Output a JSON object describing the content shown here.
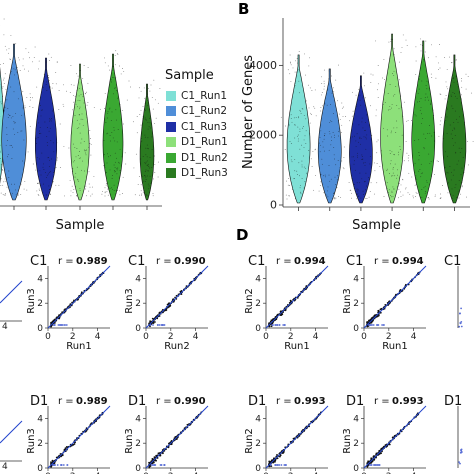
{
  "panels": {
    "b": "B",
    "d": "D"
  },
  "legend": {
    "title": "Sample",
    "items": [
      {
        "label": "C1_Run1",
        "color": "#7fe0d6"
      },
      {
        "label": "C1_Run2",
        "color": "#4f8ed8"
      },
      {
        "label": "C1_Run3",
        "color": "#1f2fa6"
      },
      {
        "label": "D1_Run1",
        "color": "#8de07a"
      },
      {
        "label": "D1_Run2",
        "color": "#3aa832"
      },
      {
        "label": "D1_Run3",
        "color": "#2a7a20"
      }
    ]
  },
  "chart_data": [
    {
      "type": "violin",
      "panel": "A",
      "xlabel": "Sample",
      "categories": [
        "C1_Run1",
        "C1_Run2",
        "C1_Run3",
        "D1_Run1",
        "D1_Run2",
        "D1_Run3"
      ],
      "colors": [
        "#7fe0d6",
        "#4f8ed8",
        "#1f2fa6",
        "#8de07a",
        "#3aa832",
        "#2a7a20"
      ]
    },
    {
      "type": "violin",
      "panel": "B",
      "title": "B",
      "xlabel": "Sample",
      "ylabel": "Number of Genes",
      "ylim": [
        0,
        5300
      ],
      "yticks": [
        0,
        2000,
        4000
      ],
      "ytick_labels": [
        "0",
        "2000",
        "4000"
      ],
      "categories": [
        "C1_Run1",
        "C1_Run2",
        "C1_Run3",
        "D1_Run1",
        "D1_Run2",
        "D1_Run3"
      ],
      "colors": [
        "#7fe0d6",
        "#4f8ed8",
        "#1f2fa6",
        "#8de07a",
        "#3aa832",
        "#2a7a20"
      ],
      "max_values": [
        4300,
        3900,
        3700,
        4900,
        4700,
        4300
      ]
    },
    {
      "type": "scatter",
      "panel": "C",
      "subplots": [
        {
          "label": "C1",
          "r": "0.989",
          "xlabel": "Run1",
          "ylabel": "Run3",
          "xticks": [
            "0",
            "2",
            "4"
          ],
          "yticks": [
            "0",
            "2",
            "4"
          ]
        },
        {
          "label": "C1",
          "r": "0.990",
          "xlabel": "Run2",
          "ylabel": "Run3",
          "xticks": [
            "0",
            "2",
            "4"
          ],
          "yticks": [
            "0",
            "2",
            "4"
          ]
        },
        {
          "label": "D1",
          "r": "0.989",
          "xlabel": "Run1",
          "ylabel": "Run3",
          "xticks": [
            "0",
            "2",
            "4"
          ],
          "yticks": [
            "0",
            "2",
            "4"
          ]
        },
        {
          "label": "D1",
          "r": "0.990",
          "xlabel": "Run2",
          "ylabel": "Run3",
          "xticks": [
            "0",
            "2",
            "4"
          ],
          "yticks": [
            "0",
            "2",
            "4"
          ]
        }
      ]
    },
    {
      "type": "scatter",
      "panel": "D",
      "subplots": [
        {
          "label": "C1",
          "r": "0.994",
          "xlabel": "Run1",
          "ylabel": "Run2",
          "xticks": [
            "0",
            "2",
            "4"
          ],
          "yticks": [
            "0",
            "2",
            "4"
          ]
        },
        {
          "label": "C1",
          "r": "0.994",
          "xlabel": "Run1",
          "ylabel": "Run3",
          "xticks": [
            "0",
            "2",
            "4"
          ],
          "yticks": [
            "0",
            "2",
            "4"
          ]
        },
        {
          "label": "C1",
          "r": "",
          "xlabel": "",
          "ylabel": "",
          "xticks": [],
          "yticks": []
        },
        {
          "label": "D1",
          "r": "0.993",
          "xlabel": "Run1",
          "ylabel": "Run2",
          "xticks": [
            "0",
            "2",
            "4"
          ],
          "yticks": [
            "0",
            "2",
            "4"
          ]
        },
        {
          "label": "D1",
          "r": "0.993",
          "xlabel": "Run1",
          "ylabel": "Run3",
          "xticks": [
            "0",
            "2",
            "4"
          ],
          "yticks": [
            "0",
            "2",
            "4"
          ]
        },
        {
          "label": "D1",
          "r": "",
          "xlabel": "",
          "ylabel": "",
          "xticks": [],
          "yticks": []
        }
      ]
    }
  ]
}
